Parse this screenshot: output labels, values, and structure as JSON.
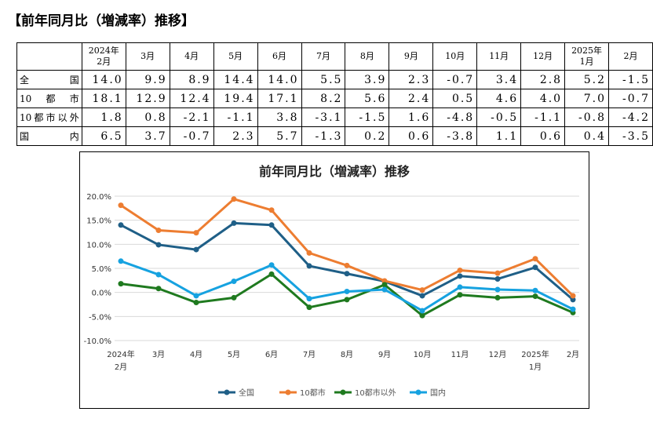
{
  "title": "【前年同月比（増減率）推移】",
  "table": {
    "headers": [
      "2024年 2月",
      "3月",
      "4月",
      "5月",
      "6月",
      "7月",
      "8月",
      "9月",
      "10月",
      "11月",
      "12月",
      "2025年 1月",
      "2月"
    ],
    "rows": [
      {
        "label": "全国",
        "values": [
          "14.0",
          "9.9",
          "8.9",
          "14.4",
          "14.0",
          "5.5",
          "3.9",
          "2.3",
          "-0.7",
          "3.4",
          "2.8",
          "5.2",
          "-1.5"
        ]
      },
      {
        "label": "10都市",
        "values": [
          "18.1",
          "12.9",
          "12.4",
          "19.4",
          "17.1",
          "8.2",
          "5.6",
          "2.4",
          "0.5",
          "4.6",
          "4.0",
          "7.0",
          "-0.7"
        ]
      },
      {
        "label": "10都市以外",
        "values": [
          "1.8",
          "0.8",
          "-2.1",
          "-1.1",
          "3.8",
          "-3.1",
          "-1.5",
          "1.6",
          "-4.8",
          "-0.5",
          "-1.1",
          "-0.8",
          "-4.2"
        ]
      },
      {
        "label": "国内",
        "values": [
          "6.5",
          "3.7",
          "-0.7",
          "2.3",
          "5.7",
          "-1.3",
          "0.2",
          "0.6",
          "-3.8",
          "1.1",
          "0.6",
          "0.4",
          "-3.5"
        ]
      }
    ]
  },
  "chart_data": {
    "type": "line",
    "title": "前年同月比（増減率）推移",
    "categories": [
      [
        "2024年",
        "2月"
      ],
      [
        "3月"
      ],
      [
        "4月"
      ],
      [
        "5月"
      ],
      [
        "6月"
      ],
      [
        "7月"
      ],
      [
        "8月"
      ],
      [
        "9月"
      ],
      [
        "10月"
      ],
      [
        "11月"
      ],
      [
        "12月"
      ],
      [
        "2025年",
        "1月"
      ],
      [
        "2月"
      ]
    ],
    "yticks": [
      "20.0%",
      "15.0%",
      "10.0%",
      "5.0%",
      "0.0%",
      "-5.0%",
      "-10.0%"
    ],
    "ylim": [
      -10,
      20
    ],
    "grid": true,
    "legend": "bottom",
    "series": [
      {
        "name": "全国",
        "color": "#1f5f87",
        "values": [
          14.0,
          9.9,
          8.9,
          14.4,
          14.0,
          5.5,
          3.9,
          2.3,
          -0.7,
          3.4,
          2.8,
          5.2,
          -1.5
        ]
      },
      {
        "name": "10都市",
        "color": "#ed7d31",
        "values": [
          18.1,
          12.9,
          12.4,
          19.4,
          17.1,
          8.2,
          5.6,
          2.4,
          0.5,
          4.6,
          4.0,
          7.0,
          -0.7
        ]
      },
      {
        "name": "10都市以外",
        "color": "#1f7a1f",
        "values": [
          1.8,
          0.8,
          -2.1,
          -1.1,
          3.8,
          -3.1,
          -1.5,
          1.6,
          -4.8,
          -0.5,
          -1.1,
          -0.8,
          -4.2
        ]
      },
      {
        "name": "国内",
        "color": "#16a2e0",
        "values": [
          6.5,
          3.7,
          -0.7,
          2.3,
          5.7,
          -1.3,
          0.2,
          0.6,
          -3.8,
          1.1,
          0.6,
          0.4,
          -3.5
        ]
      }
    ]
  }
}
